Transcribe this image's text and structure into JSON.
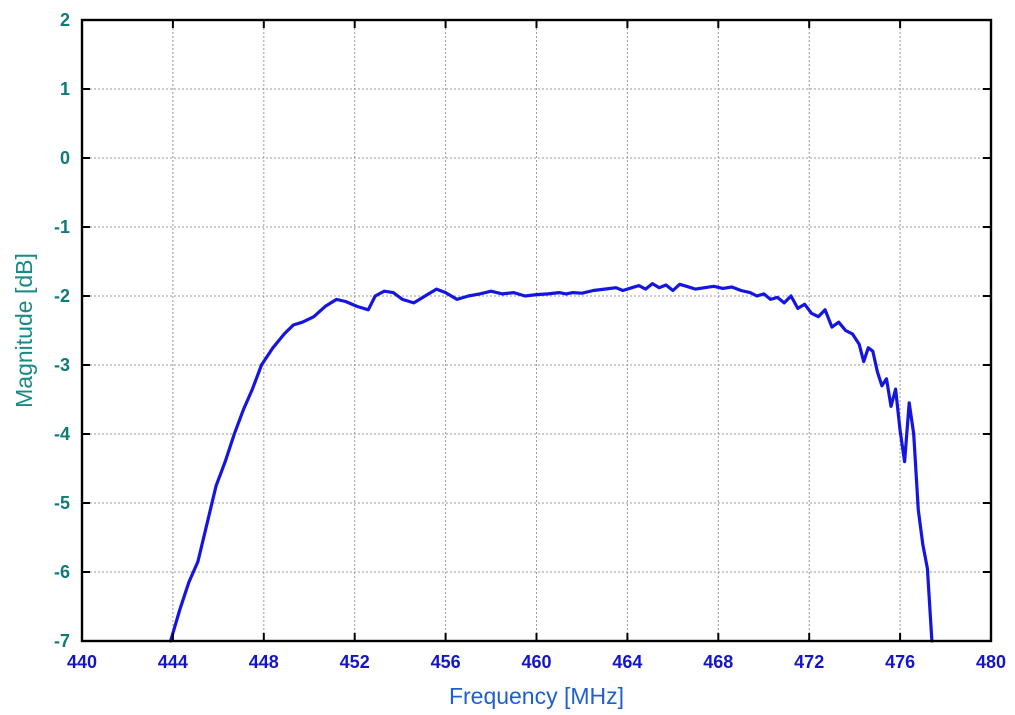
{
  "colors": {
    "series": "#1515e0",
    "x_tick": "#1515c8",
    "x_label": "#1f5fd0",
    "y_tick": "#0f7a78",
    "y_label": "#178a84",
    "grid": "#9a9a9a",
    "frame": "#000000"
  },
  "chart_data": {
    "type": "line",
    "xlabel": "Frequency [MHz]",
    "ylabel": "Magnitude [dB]",
    "xlim": [
      440,
      480
    ],
    "ylim": [
      -7,
      2
    ],
    "x_ticks": [
      440,
      444,
      448,
      452,
      456,
      460,
      464,
      468,
      472,
      476,
      480
    ],
    "y_ticks": [
      -7,
      -6,
      -5,
      -4,
      -3,
      -2,
      -1,
      0,
      1,
      2
    ],
    "x_tick_labels": [
      "440",
      "444",
      "448",
      "452",
      "456",
      "460",
      "464",
      "468",
      "472",
      "476",
      "480"
    ],
    "y_tick_labels": [
      "-7",
      "-6",
      "-5",
      "-4",
      "-3",
      "-2",
      "-1",
      "0",
      "1",
      "2"
    ],
    "grid": true,
    "series": [
      {
        "x": [
          443.9,
          444.3,
          444.7,
          445.1,
          445.5,
          445.9,
          446.3,
          446.7,
          447.1,
          447.5,
          447.9,
          448.4,
          448.9,
          449.3,
          449.7,
          450.2,
          450.7,
          451.2,
          451.6,
          452.1,
          452.6,
          452.9,
          453.3,
          453.7,
          454.1,
          454.6,
          455.1,
          455.6,
          456.0,
          456.5,
          457.0,
          457.5,
          458.0,
          458.5,
          459.0,
          459.5,
          460.0,
          460.5,
          461.0,
          461.3,
          461.6,
          462.0,
          462.5,
          463.0,
          463.5,
          463.8,
          464.2,
          464.5,
          464.8,
          465.1,
          465.4,
          465.7,
          466.0,
          466.3,
          466.6,
          467.0,
          467.4,
          467.8,
          468.2,
          468.6,
          469.0,
          469.4,
          469.7,
          470.0,
          470.3,
          470.6,
          470.9,
          471.2,
          471.5,
          471.8,
          472.1,
          472.4,
          472.7,
          473.0,
          473.3,
          473.6,
          473.9,
          474.2,
          474.4,
          474.6,
          474.8,
          475.0,
          475.2,
          475.4,
          475.6,
          475.8,
          476.0,
          476.2,
          476.4,
          476.6,
          476.8,
          477.0,
          477.2,
          477.4
        ],
        "y": [
          -7.0,
          -6.55,
          -6.15,
          -5.85,
          -5.3,
          -4.75,
          -4.4,
          -4.0,
          -3.65,
          -3.35,
          -3.0,
          -2.75,
          -2.55,
          -2.42,
          -2.38,
          -2.3,
          -2.15,
          -2.05,
          -2.08,
          -2.15,
          -2.2,
          -2.0,
          -1.93,
          -1.95,
          -2.05,
          -2.1,
          -2.0,
          -1.9,
          -1.95,
          -2.05,
          -2.0,
          -1.97,
          -1.93,
          -1.97,
          -1.95,
          -2.0,
          -1.98,
          -1.97,
          -1.95,
          -1.97,
          -1.95,
          -1.96,
          -1.92,
          -1.9,
          -1.88,
          -1.92,
          -1.88,
          -1.85,
          -1.9,
          -1.82,
          -1.88,
          -1.84,
          -1.92,
          -1.83,
          -1.86,
          -1.9,
          -1.88,
          -1.86,
          -1.89,
          -1.87,
          -1.92,
          -1.95,
          -2.0,
          -1.97,
          -2.05,
          -2.02,
          -2.1,
          -2.0,
          -2.18,
          -2.12,
          -2.25,
          -2.3,
          -2.2,
          -2.45,
          -2.38,
          -2.5,
          -2.55,
          -2.7,
          -2.95,
          -2.75,
          -2.8,
          -3.1,
          -3.3,
          -3.2,
          -3.6,
          -3.35,
          -3.95,
          -4.4,
          -3.55,
          -4.0,
          -5.1,
          -5.6,
          -5.95,
          -7.0
        ]
      }
    ]
  }
}
